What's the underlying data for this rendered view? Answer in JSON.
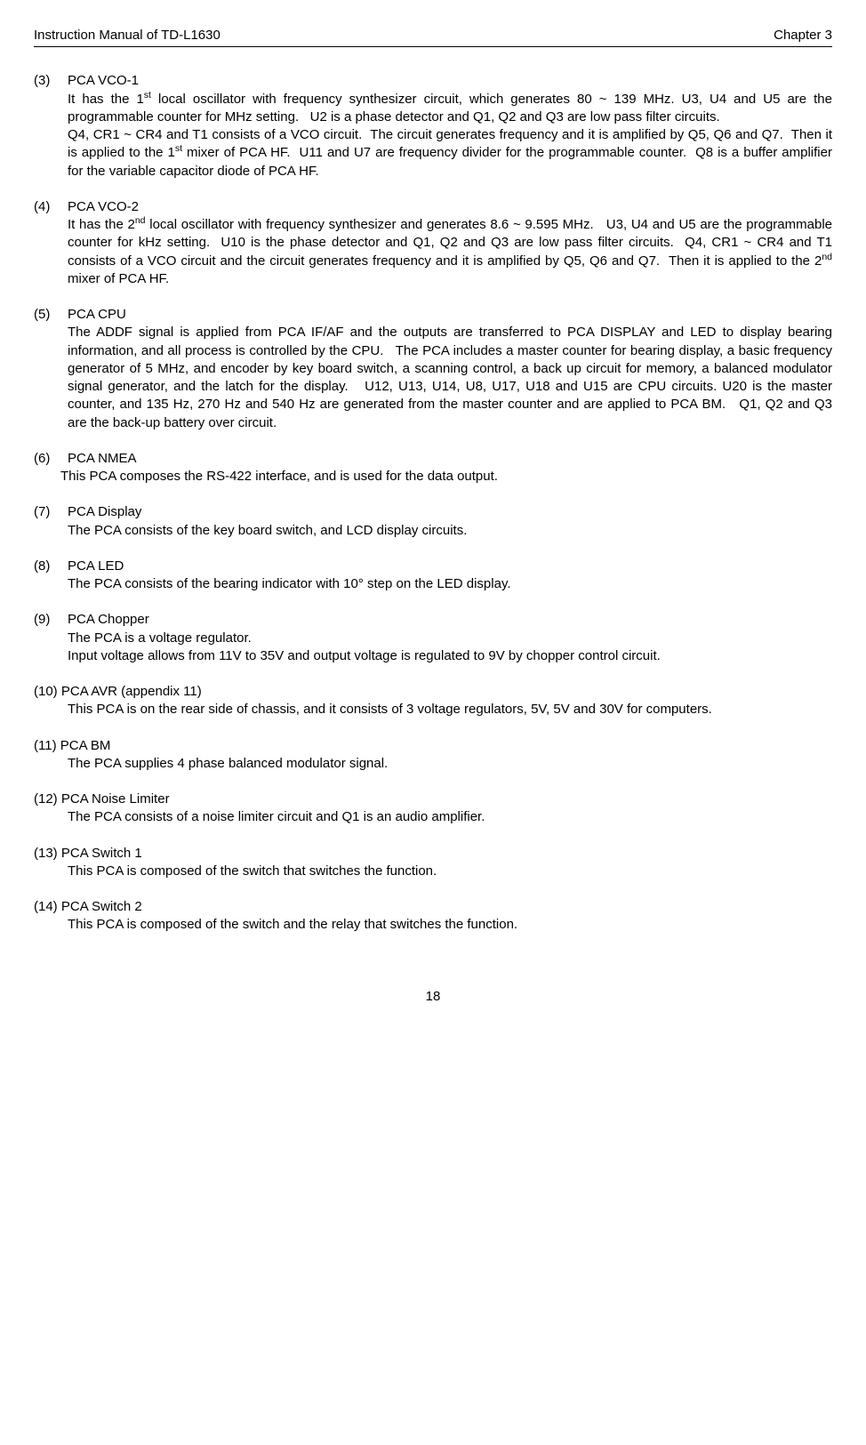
{
  "header": {
    "left": "Instruction Manual of TD-L1630",
    "right": "Chapter 3"
  },
  "sections": [
    {
      "num": "(3)",
      "title": "PCA VCO-1",
      "body": "It has the 1<span class=\"sup\">st</span> local oscillator with frequency synthesizer circuit, which generates 80 ~ 139 MHz. U3, U4 and U5 are the programmable counter for MHz setting.&nbsp;&nbsp; U2 is a phase detector and Q1, Q2 and Q3 are low pass filter circuits.<br>Q4, CR1 ~ CR4 and T1 consists of a VCO circuit.&nbsp;&nbsp;The circuit generates frequency and it is amplified by Q5, Q6 and Q7.&nbsp;&nbsp;Then it is applied to the 1<span class=\"sup\">st</span> mixer of PCA HF.&nbsp;&nbsp;U11 and U7 are frequency divider for the programmable counter.&nbsp;&nbsp;Q8 is a buffer amplifier for the variable capacitor diode of PCA HF.",
      "indent": "normal"
    },
    {
      "num": "(4)",
      "title": "PCA VCO-2",
      "body": "It has the 2<span class=\"sup\">nd</span> local oscillator with frequency synthesizer and generates 8.6 ~ 9.595 MHz.&nbsp;&nbsp; U3, U4 and U5 are the programmable counter for kHz setting.&nbsp;&nbsp;U10 is the phase detector and Q1, Q2 and Q3 are low pass filter circuits.&nbsp;&nbsp;Q4, CR1 ~ CR4 and T1 consists of a VCO circuit and the circuit generates frequency and it is amplified by Q5, Q6 and Q7.&nbsp;&nbsp;Then it is applied to the 2<span class=\"sup\">nd</span> mixer of PCA HF.",
      "indent": "normal"
    },
    {
      "num": "(5)",
      "title": "PCA CPU",
      "body": "The ADDF signal is applied from PCA IF/AF and the outputs are transferred to PCA DISPLAY and LED to display bearing information, and all process is controlled by the CPU.&nbsp;&nbsp; The PCA includes a master counter for bearing display, a basic frequency generator of 5 MHz, and encoder by key board switch, a scanning control, a back up circuit for memory, a balanced modulator signal generator, and the latch for the display.&nbsp;&nbsp; U12, U13, U14, U8, U17, U18 and U15 are CPU circuits. U20 is the master counter, and 135 Hz, 270 Hz and 540 Hz are generated from the master counter and are applied to PCA BM.&nbsp;&nbsp; Q1, Q2 and Q3 are the back-up battery over circuit.",
      "indent": "normal"
    },
    {
      "num": "(6)",
      "title": "PCA NMEA",
      "body": "This PCA composes the RS-422 interface, and is used for the data output.",
      "indent": "alt"
    },
    {
      "num": "(7)",
      "title": "PCA Display",
      "body": "The PCA consists of the key board switch, and LCD display circuits.",
      "indent": "normal"
    },
    {
      "num": "(8)",
      "title": "PCA LED",
      "body": "The PCA consists of the bearing indicator with 10° step on the LED display.",
      "indent": "normal"
    },
    {
      "num": "(9)",
      "title": "PCA Chopper",
      "body": "The PCA is a voltage regulator.<br>Input voltage allows from 11V to 35V and output voltage is regulated to 9V by chopper control circuit.",
      "indent": "normal"
    },
    {
      "num": "(10)",
      "title": "PCA AVR (appendix 11)",
      "body": "This PCA is on the rear side of chassis, and it consists of 3 voltage regulators, 5V, 5V and 30V for computers.",
      "indent": "normal",
      "num_nospace": true
    },
    {
      "num": "(11)",
      "title": "PCA BM",
      "body": "The PCA supplies 4 phase balanced modulator signal.",
      "indent": "normal",
      "num_nospace": true
    },
    {
      "num": "(12)",
      "title": "PCA Noise Limiter",
      "body": "The PCA consists of a noise limiter circuit and Q1 is an audio amplifier.",
      "indent": "normal",
      "num_nospace": true
    },
    {
      "num": "(13)",
      "title": "PCA Switch 1",
      "body": "This PCA is composed of the switch that switches the function.",
      "indent": "normal",
      "num_nospace": true
    },
    {
      "num": "(14)",
      "title": "PCA Switch 2",
      "body": "This PCA is composed of the switch and the relay that switches the function.",
      "indent": "normal",
      "num_nospace": true
    }
  ],
  "pageNumber": "18"
}
